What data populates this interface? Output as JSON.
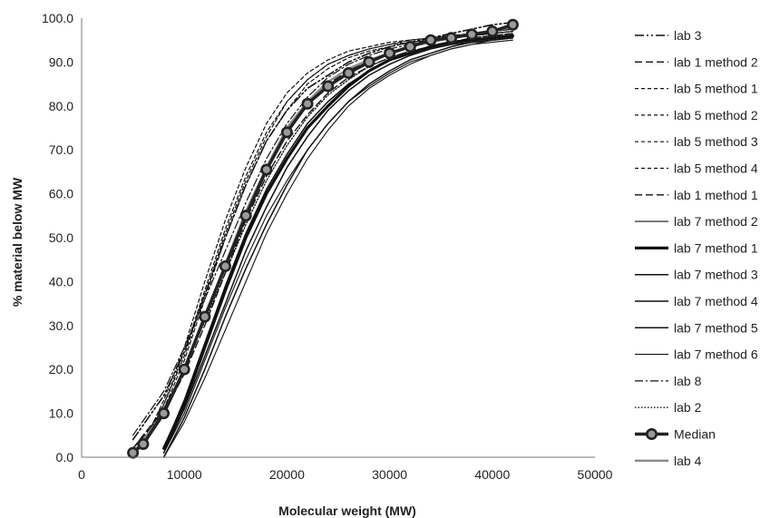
{
  "chart_data": {
    "type": "line",
    "xlabel": "Molecular weight (MW)",
    "ylabel": "% material below MW",
    "xlim": [
      0,
      50000
    ],
    "ylim": [
      0,
      100
    ],
    "x_ticks": [
      0,
      10000,
      20000,
      30000,
      40000,
      50000
    ],
    "x_tick_labels": [
      "0",
      "10000",
      "20000",
      "30000",
      "40000",
      "50000"
    ],
    "y_ticks": [
      0,
      10,
      20,
      30,
      40,
      50,
      60,
      70,
      80,
      90,
      100
    ],
    "y_tick_labels": [
      "0.0",
      "10.0",
      "20.0",
      "30.0",
      "40.0",
      "50.0",
      "60.0",
      "70.0",
      "80.0",
      "90.0",
      "100.0"
    ],
    "grid": false,
    "legend_position": "right",
    "series": [
      {
        "name": "lab 3",
        "color": "#111111",
        "style": "dashdotdot",
        "x": [
          5000,
          8000,
          10000,
          12000,
          14000,
          16000,
          18000,
          20000,
          22000,
          24000,
          26000,
          28000,
          30000,
          32000,
          34000,
          36000,
          38000,
          40000,
          42000
        ],
        "y": [
          4,
          14,
          24,
          37,
          50,
          62,
          72,
          79,
          84,
          87,
          90,
          92,
          93.5,
          94.5,
          95.5,
          96.5,
          97.5,
          98.5,
          99
        ]
      },
      {
        "name": "lab 1 method 2",
        "color": "#111111",
        "style": "longdash",
        "x": [
          5000,
          8000,
          10000,
          12000,
          14000,
          16000,
          18000,
          20000,
          22000,
          24000,
          26000,
          28000,
          30000,
          32000,
          34000,
          36000,
          38000,
          40000,
          42000
        ],
        "y": [
          2,
          11,
          20,
          32,
          44,
          56,
          66,
          74,
          80,
          85,
          88,
          90.5,
          92,
          93.5,
          94.5,
          95.5,
          96.5,
          97,
          97.5
        ]
      },
      {
        "name": "lab 5 method 1",
        "color": "#111111",
        "style": "shortdash",
        "x": [
          6000,
          8000,
          10000,
          12000,
          14000,
          16000,
          18000,
          20000,
          22000,
          24000,
          26000,
          28000,
          30000,
          32000,
          34000,
          36000,
          38000,
          40000,
          42000
        ],
        "y": [
          3,
          12,
          23,
          37,
          51,
          63,
          73,
          81,
          86,
          89.5,
          91.5,
          93,
          94,
          95,
          95.5,
          96,
          96.5,
          97,
          97.5
        ]
      },
      {
        "name": "lab 5 method 2",
        "color": "#111111",
        "style": "shortdash",
        "x": [
          6000,
          8000,
          10000,
          12000,
          14000,
          16000,
          18000,
          20000,
          22000,
          24000,
          26000,
          28000,
          30000,
          32000,
          34000,
          36000,
          38000,
          40000,
          42000
        ],
        "y": [
          3,
          13,
          25,
          40,
          54,
          66,
          76,
          83,
          87.5,
          90.5,
          92.5,
          93.5,
          94.5,
          95,
          95.5,
          96,
          96.5,
          97,
          97.5
        ]
      },
      {
        "name": "lab 5 method 3",
        "color": "#111111",
        "style": "shortdash",
        "x": [
          6000,
          8000,
          10000,
          12000,
          14000,
          16000,
          18000,
          20000,
          22000,
          24000,
          26000,
          28000,
          30000,
          32000,
          34000,
          36000,
          38000,
          40000,
          42000
        ],
        "y": [
          2,
          11,
          22,
          36,
          50,
          62,
          72,
          79,
          85,
          88.5,
          91,
          92.5,
          93.5,
          94.5,
          95,
          95.5,
          96,
          96.5,
          97
        ]
      },
      {
        "name": "lab 5 method 4",
        "color": "#111111",
        "style": "shortdash",
        "x": [
          6000,
          8000,
          10000,
          12000,
          14000,
          16000,
          18000,
          20000,
          22000,
          24000,
          26000,
          28000,
          30000,
          32000,
          34000,
          36000,
          38000,
          40000,
          42000
        ],
        "y": [
          2,
          12,
          24,
          38,
          52,
          64,
          74,
          81,
          86,
          89.5,
          91.5,
          93,
          94,
          94.5,
          95,
          95.5,
          96,
          96.5,
          97
        ]
      },
      {
        "name": "lab 1 method 1",
        "color": "#111111",
        "style": "longdash",
        "x": [
          5000,
          8000,
          10000,
          12000,
          14000,
          16000,
          18000,
          20000,
          22000,
          24000,
          26000,
          28000,
          30000,
          32000,
          34000,
          36000,
          38000,
          40000,
          42000
        ],
        "y": [
          2,
          10,
          19,
          30,
          42,
          54,
          64,
          72,
          78,
          83,
          86.5,
          89,
          91,
          92.5,
          93.5,
          94.5,
          95.5,
          96,
          96.5
        ]
      },
      {
        "name": "lab 7 method 2",
        "color": "#111111",
        "style": "solid-thin",
        "x": [
          8000,
          10000,
          12000,
          14000,
          16000,
          18000,
          20000,
          22000,
          24000,
          26000,
          28000,
          30000,
          32000,
          34000,
          36000,
          38000,
          40000,
          42000
        ],
        "y": [
          1,
          10,
          22,
          34,
          45,
          55,
          63,
          70,
          76,
          81,
          84.5,
          87.5,
          90,
          91.5,
          93,
          94,
          94.5,
          95
        ]
      },
      {
        "name": "lab 7 method 1",
        "color": "#111111",
        "style": "solid-thick",
        "x": [
          8000,
          10000,
          12000,
          14000,
          16000,
          18000,
          20000,
          22000,
          24000,
          26000,
          28000,
          30000,
          32000,
          34000,
          36000,
          38000,
          40000,
          42000
        ],
        "y": [
          2,
          12,
          25,
          38,
          50,
          60,
          68,
          75,
          80,
          84.5,
          88,
          90.5,
          92,
          93.5,
          94.5,
          95,
          95.5,
          96
        ]
      },
      {
        "name": "lab 7 method 3",
        "color": "#111111",
        "style": "solid",
        "x": [
          8000,
          10000,
          12000,
          14000,
          16000,
          18000,
          20000,
          22000,
          24000,
          26000,
          28000,
          30000,
          32000,
          34000,
          36000,
          38000,
          40000,
          42000
        ],
        "y": [
          2,
          13,
          26,
          39,
          51,
          61,
          69,
          76,
          81,
          85,
          88,
          90.5,
          92,
          93.5,
          94.5,
          95,
          95.5,
          96
        ]
      },
      {
        "name": "lab 7 method 4",
        "color": "#111111",
        "style": "solid",
        "x": [
          8000,
          10000,
          12000,
          14000,
          16000,
          18000,
          20000,
          22000,
          24000,
          26000,
          28000,
          30000,
          32000,
          34000,
          36000,
          38000,
          40000,
          42000
        ],
        "y": [
          1,
          11,
          23,
          35,
          47,
          57,
          66,
          73,
          79,
          83.5,
          87,
          89.5,
          91.5,
          93,
          94,
          94.5,
          95,
          95.5
        ]
      },
      {
        "name": "lab 7 method 5",
        "color": "#111111",
        "style": "solid",
        "x": [
          8000,
          10000,
          12000,
          14000,
          16000,
          18000,
          20000,
          22000,
          24000,
          26000,
          28000,
          30000,
          32000,
          34000,
          36000,
          38000,
          40000,
          42000
        ],
        "y": [
          0,
          9,
          20,
          32,
          43,
          53,
          62,
          70,
          76,
          81,
          85,
          88,
          90.5,
          92,
          93.5,
          94.5,
          95,
          95.5
        ]
      },
      {
        "name": "lab 7 method 6",
        "color": "#111111",
        "style": "solid-thin",
        "x": [
          8000,
          10000,
          12000,
          14000,
          16000,
          18000,
          20000,
          22000,
          24000,
          26000,
          28000,
          30000,
          32000,
          34000,
          36000,
          38000,
          40000,
          42000
        ],
        "y": [
          0,
          8,
          18,
          29,
          40,
          51,
          60,
          68,
          74.5,
          80,
          84,
          87,
          89.5,
          91.5,
          93,
          94,
          95,
          95.5
        ]
      },
      {
        "name": "lab 8",
        "color": "#111111",
        "style": "dashdot",
        "x": [
          5000,
          8000,
          10000,
          12000,
          14000,
          16000,
          18000,
          20000,
          22000,
          24000,
          26000,
          28000,
          30000,
          32000,
          34000,
          36000,
          38000,
          40000,
          42000
        ],
        "y": [
          5,
          15,
          25,
          36,
          47,
          58,
          68,
          76,
          82,
          86.5,
          89.5,
          91.5,
          93,
          94,
          95,
          95.5,
          96,
          96.5,
          97
        ]
      },
      {
        "name": "lab 2",
        "color": "#111111",
        "style": "dotted",
        "x": [
          6000,
          8000,
          10000,
          12000,
          14000,
          16000,
          18000,
          20000,
          22000,
          24000,
          26000,
          28000,
          30000,
          32000,
          34000,
          36000,
          38000,
          40000,
          42000
        ],
        "y": [
          3,
          11,
          20,
          31,
          42,
          53,
          63,
          71,
          77.5,
          82.5,
          86,
          89,
          91,
          92.5,
          93.5,
          94.5,
          95.5,
          96,
          96.5
        ]
      },
      {
        "name": "Median",
        "color": "#222222",
        "marker_fill": "#9a9a9a",
        "style": "median",
        "x": [
          5000,
          6000,
          8000,
          10000,
          12000,
          14000,
          16000,
          18000,
          20000,
          22000,
          24000,
          26000,
          28000,
          30000,
          32000,
          34000,
          36000,
          38000,
          40000,
          42000
        ],
        "y": [
          1,
          3,
          10,
          20,
          32,
          43.5,
          55,
          65.5,
          74,
          80.5,
          84.5,
          87.5,
          90,
          92,
          93.5,
          95,
          95.5,
          96.3,
          97,
          98.5
        ]
      },
      {
        "name": "lab 4",
        "color": "#8a8a8a",
        "style": "gray",
        "x": [
          5000,
          8000,
          10000,
          12000,
          14000,
          16000,
          18000,
          20000,
          22000,
          24000,
          26000,
          28000,
          30000,
          32000,
          34000,
          36000,
          38000,
          40000,
          42000
        ],
        "y": [
          1,
          10,
          20,
          32,
          44,
          56,
          66,
          75,
          81,
          85.5,
          88.5,
          90.5,
          92,
          93.5,
          94.5,
          95.5,
          96.5,
          97,
          98
        ]
      }
    ]
  }
}
